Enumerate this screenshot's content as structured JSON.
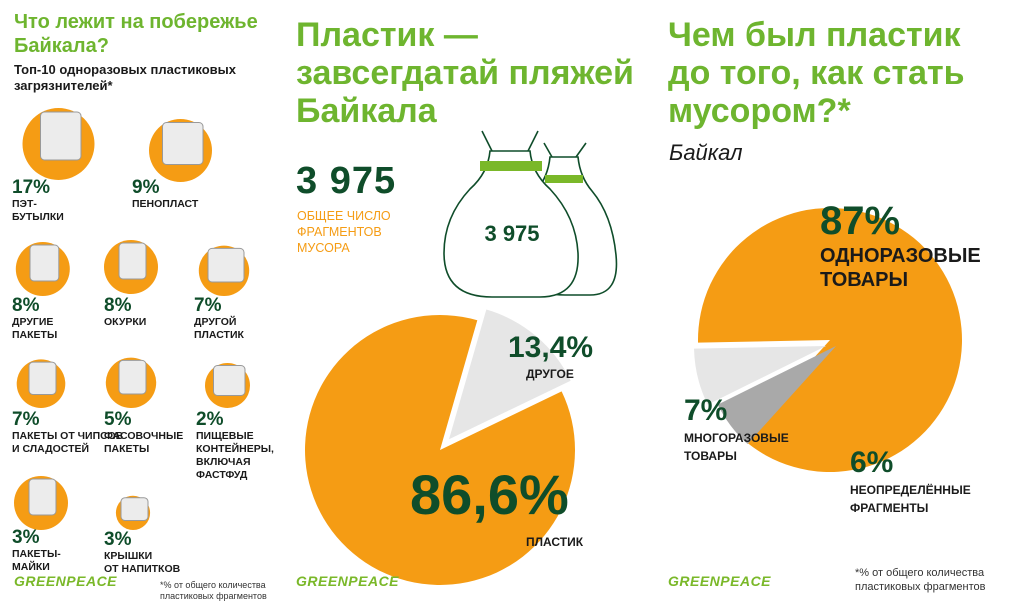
{
  "left": {
    "title": "Что лежит на побережье Байкала?",
    "subtitle": "Топ-10 одноразовых пластиковых загрязнителей*",
    "items": [
      {
        "pct": "17%",
        "label": "ПЭТ-\nБУТЫЛКИ",
        "icon": "pet-bottle-icon"
      },
      {
        "pct": "9%",
        "label": "ПЕНОПЛАСТ",
        "icon": "foam-icon"
      },
      {
        "pct": "8%",
        "label": "ДРУГИЕ\nПАКЕТЫ",
        "icon": "bag-icon"
      },
      {
        "pct": "8%",
        "label": "ОКУРКИ",
        "icon": "cigarette-butt-icon"
      },
      {
        "pct": "7%",
        "label": "ДРУГОЙ\nПЛАСТИК",
        "icon": "plastic-item-icon"
      },
      {
        "pct": "7%",
        "label": "ПАКЕТЫ ОТ ЧИПСОВ\nИ СЛАДОСТЕЙ",
        "icon": "chips-bag-icon"
      },
      {
        "pct": "5%",
        "label": "ФАСОВОЧНЫЕ\nПАКЕТЫ",
        "icon": "produce-bag-icon"
      },
      {
        "pct": "2%",
        "label": "ПИЩЕВЫЕ\nКОНТЕЙНЕРЫ,\nВКЛЮЧАЯ\nФАСТФУД",
        "icon": "food-container-icon"
      },
      {
        "pct": "3%",
        "label": "ПАКЕТЫ-\nМАЙКИ",
        "icon": "tshirt-bag-icon"
      },
      {
        "pct": "3%",
        "label": "КРЫШКИ\nОТ НАПИТКОВ",
        "icon": "bottle-cap-icon"
      }
    ],
    "logo": "GREENPEACE",
    "footnote": "*% от общего количества пластиковых фрагментов"
  },
  "middle": {
    "title": "Пластик — завсегдатай пляжей Байкала",
    "total": "3 975",
    "total_label": "ОБЩЕЕ ЧИСЛО ФРАГМЕНТОВ МУСОРА",
    "bag_label": "3 975",
    "logo": "GREENPEACE"
  },
  "right": {
    "title": "Чем был пластик до того, как стать мусором?*",
    "subtitle": "Байкал",
    "logo": "GREENPEACE",
    "footnote": "*% от общего количества пластиковых фрагментов"
  },
  "colors": {
    "orange": "#f59c14",
    "light_gray": "#e6e6e6",
    "mid_gray": "#a9a9a9",
    "green": "#7ab829",
    "dark_green": "#0f4d2a"
  },
  "chart_data": [
    {
      "type": "pie",
      "slices": [
        {
          "label": "ПЛАСТИК",
          "value": 86.6,
          "display": "86,6%",
          "color": "#f59c14"
        },
        {
          "label": "ДРУГОЕ",
          "value": 13.4,
          "display": "13,4%",
          "color": "#e6e6e6"
        }
      ]
    },
    {
      "type": "pie",
      "slices": [
        {
          "label": "ОДНОРАЗОВЫЕ ТОВАРЫ",
          "value": 87,
          "display": "87%",
          "color": "#f59c14"
        },
        {
          "label": "НЕОПРЕДЕЛЁННЫЕ ФРАГМЕНТЫ",
          "value": 6,
          "display": "6%",
          "color": "#a9a9a9"
        },
        {
          "label": "МНОГОРАЗОВЫЕ ТОВАРЫ",
          "value": 7,
          "display": "7%",
          "color": "#e6e6e6"
        }
      ]
    }
  ]
}
